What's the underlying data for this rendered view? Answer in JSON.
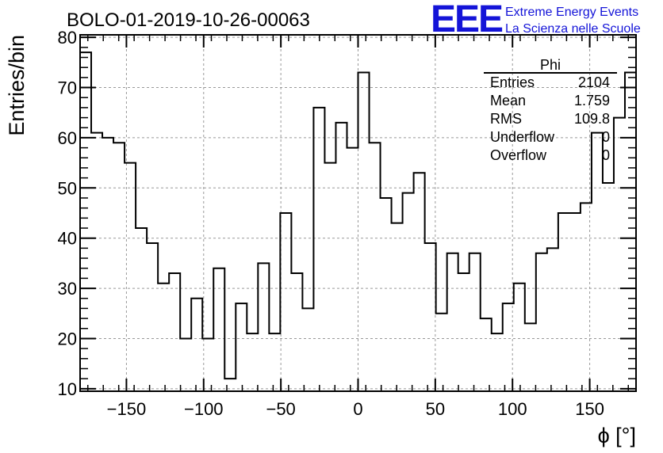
{
  "chart_data": {
    "type": "histogram",
    "title": "BOLO-01-2019-10-26-00063",
    "xlabel": "ϕ [°]",
    "ylabel": "Entries/bin",
    "xlim": [
      -180,
      180
    ],
    "ylim": [
      9.5,
      80.5
    ],
    "bin_width": 7.2,
    "grid": true,
    "xticks": [
      -150,
      -100,
      -50,
      0,
      50,
      100,
      150
    ],
    "xtick_labels": [
      "−150",
      "−100",
      "−50",
      "0",
      "50",
      "100",
      "150"
    ],
    "yticks": [
      10,
      20,
      30,
      40,
      50,
      60,
      70,
      80
    ],
    "ytick_labels": [
      "10",
      "20",
      "30",
      "40",
      "50",
      "60",
      "70",
      "80"
    ],
    "values": [
      77,
      61,
      60,
      59,
      55,
      42,
      39,
      31,
      33,
      20,
      28,
      20,
      34,
      12,
      27,
      21,
      35,
      21,
      45,
      33,
      26,
      66,
      55,
      63,
      58,
      73,
      59,
      48,
      43,
      49,
      53,
      39,
      25,
      37,
      33,
      37,
      24,
      21,
      27,
      31,
      23,
      37,
      38,
      45,
      45,
      47,
      61,
      51,
      64,
      73
    ],
    "stats_box": {
      "title": "Phi",
      "rows": [
        {
          "label": "Entries",
          "value": "2104"
        },
        {
          "label": "Mean",
          "value": "1.759"
        },
        {
          "label": "RMS",
          "value": "109.8"
        },
        {
          "label": "Underflow",
          "value": "0"
        },
        {
          "label": "Overflow",
          "value": "0"
        }
      ]
    }
  },
  "branding": {
    "logo_text": "EEE",
    "line1": "Extreme Energy Events",
    "line2": "La Scienza nelle Scuole",
    "color": "#1414d8"
  }
}
